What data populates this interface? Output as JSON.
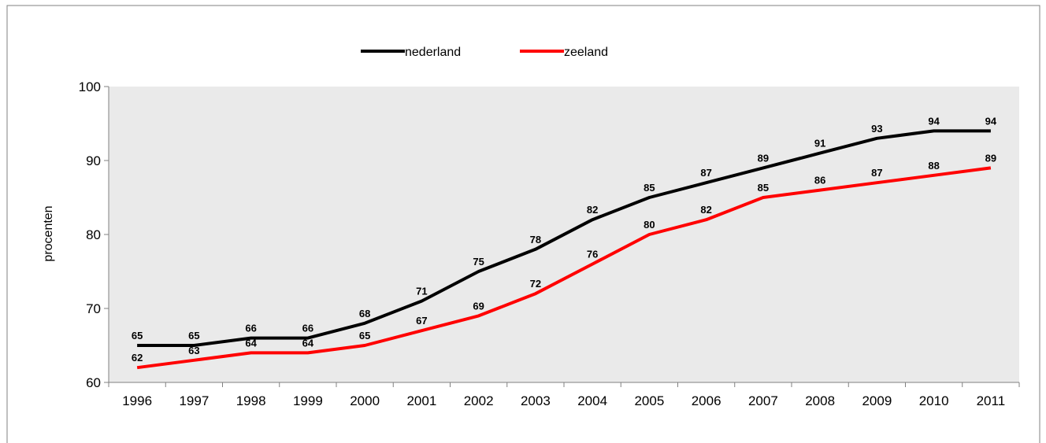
{
  "chart_data": {
    "type": "line",
    "title": "",
    "xlabel": "",
    "ylabel": "procenten",
    "categories": [
      "1996",
      "1997",
      "1998",
      "1999",
      "2000",
      "2001",
      "2002",
      "2003",
      "2004",
      "2005",
      "2006",
      "2007",
      "2008",
      "2009",
      "2010",
      "2011"
    ],
    "ylim": [
      60,
      100
    ],
    "yticks": [
      60,
      70,
      80,
      90,
      100
    ],
    "grid": false,
    "legend_position": "top",
    "series": [
      {
        "name": "nederland",
        "color": "#000000",
        "values": [
          65,
          65,
          66,
          66,
          68,
          71,
          75,
          78,
          82,
          85,
          87,
          89,
          91,
          93,
          94,
          94
        ]
      },
      {
        "name": "zeeland",
        "color": "#ff0000",
        "values": [
          62,
          63,
          64,
          64,
          65,
          67,
          69,
          72,
          76,
          80,
          82,
          85,
          86,
          87,
          88,
          89
        ]
      }
    ]
  },
  "colors": {
    "plot_background": "#eaeaea",
    "axis": "#808080",
    "frame": "#808080"
  }
}
